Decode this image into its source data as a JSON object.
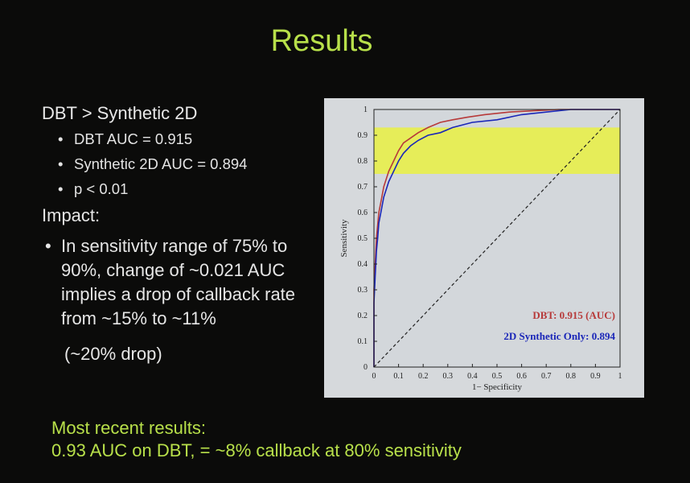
{
  "slide": {
    "title": "Results",
    "colors": {
      "background": "#0b0b0a",
      "accent": "#b8e04a",
      "text": "#e6e6e6"
    }
  },
  "left": {
    "heading": "DBT > Synthetic 2D",
    "sub_bullets": [
      "DBT AUC = 0.915",
      "Synthetic 2D AUC = 0.894",
      "p < 0.01"
    ],
    "impact_heading": "Impact:",
    "impact_bullet": "In sensitivity range of 75% to 90%, change of ~0.021 AUC implies a drop of callback rate from ~15% to ~11%",
    "impact_note": "(~20% drop)"
  },
  "footer": {
    "line1": "Most recent results:",
    "line2": "0.93 AUC on DBT, = ~8% callback at 80% sensitivity"
  },
  "chart_data": {
    "type": "line",
    "xlabel": "1− Specificity",
    "ylabel": "Sensitivity",
    "xlim": [
      0,
      1
    ],
    "ylim": [
      0,
      1
    ],
    "x_ticks": [
      "0",
      "0.1",
      "0.2",
      "0.3",
      "0.4",
      "0.5",
      "0.6",
      "0.7",
      "0.8",
      "0.9",
      "1"
    ],
    "y_ticks": [
      "0",
      "0.1",
      "0.2",
      "0.3",
      "0.4",
      "0.5",
      "0.6",
      "0.7",
      "0.8",
      "0.9",
      "1"
    ],
    "highlight_band": {
      "y_from": 0.75,
      "y_to": 0.93,
      "color": "#e8f04a"
    },
    "series": [
      {
        "name": "DBT: 0.915 (AUC)",
        "color": "#b73a3a",
        "x": [
          0,
          0,
          0.005,
          0.01,
          0.015,
          0.02,
          0.03,
          0.04,
          0.05,
          0.06,
          0.08,
          0.1,
          0.12,
          0.15,
          0.18,
          0.22,
          0.27,
          0.32,
          0.38,
          0.45,
          0.55,
          0.65,
          0.75,
          0.85,
          1
        ],
        "y": [
          0,
          0.3,
          0.4,
          0.5,
          0.55,
          0.6,
          0.65,
          0.7,
          0.73,
          0.76,
          0.8,
          0.84,
          0.87,
          0.89,
          0.91,
          0.93,
          0.95,
          0.96,
          0.97,
          0.98,
          0.99,
          0.995,
          1,
          1,
          1
        ]
      },
      {
        "name": "2D Synthetic Only: 0.894",
        "color": "#1a26b8",
        "x": [
          0,
          0,
          0.005,
          0.01,
          0.015,
          0.02,
          0.03,
          0.04,
          0.05,
          0.06,
          0.08,
          0.1,
          0.12,
          0.15,
          0.18,
          0.22,
          0.27,
          0.32,
          0.4,
          0.5,
          0.6,
          0.7,
          0.8,
          0.9,
          1
        ],
        "y": [
          0,
          0.25,
          0.35,
          0.45,
          0.5,
          0.56,
          0.61,
          0.66,
          0.69,
          0.72,
          0.76,
          0.8,
          0.83,
          0.86,
          0.88,
          0.9,
          0.91,
          0.93,
          0.95,
          0.96,
          0.98,
          0.99,
          1,
          1,
          1
        ]
      },
      {
        "name": "",
        "color": "#222222",
        "dashed": true,
        "x": [
          0,
          1
        ],
        "y": [
          0,
          1
        ]
      }
    ],
    "legend_position": "bottom-right",
    "grid": false
  }
}
